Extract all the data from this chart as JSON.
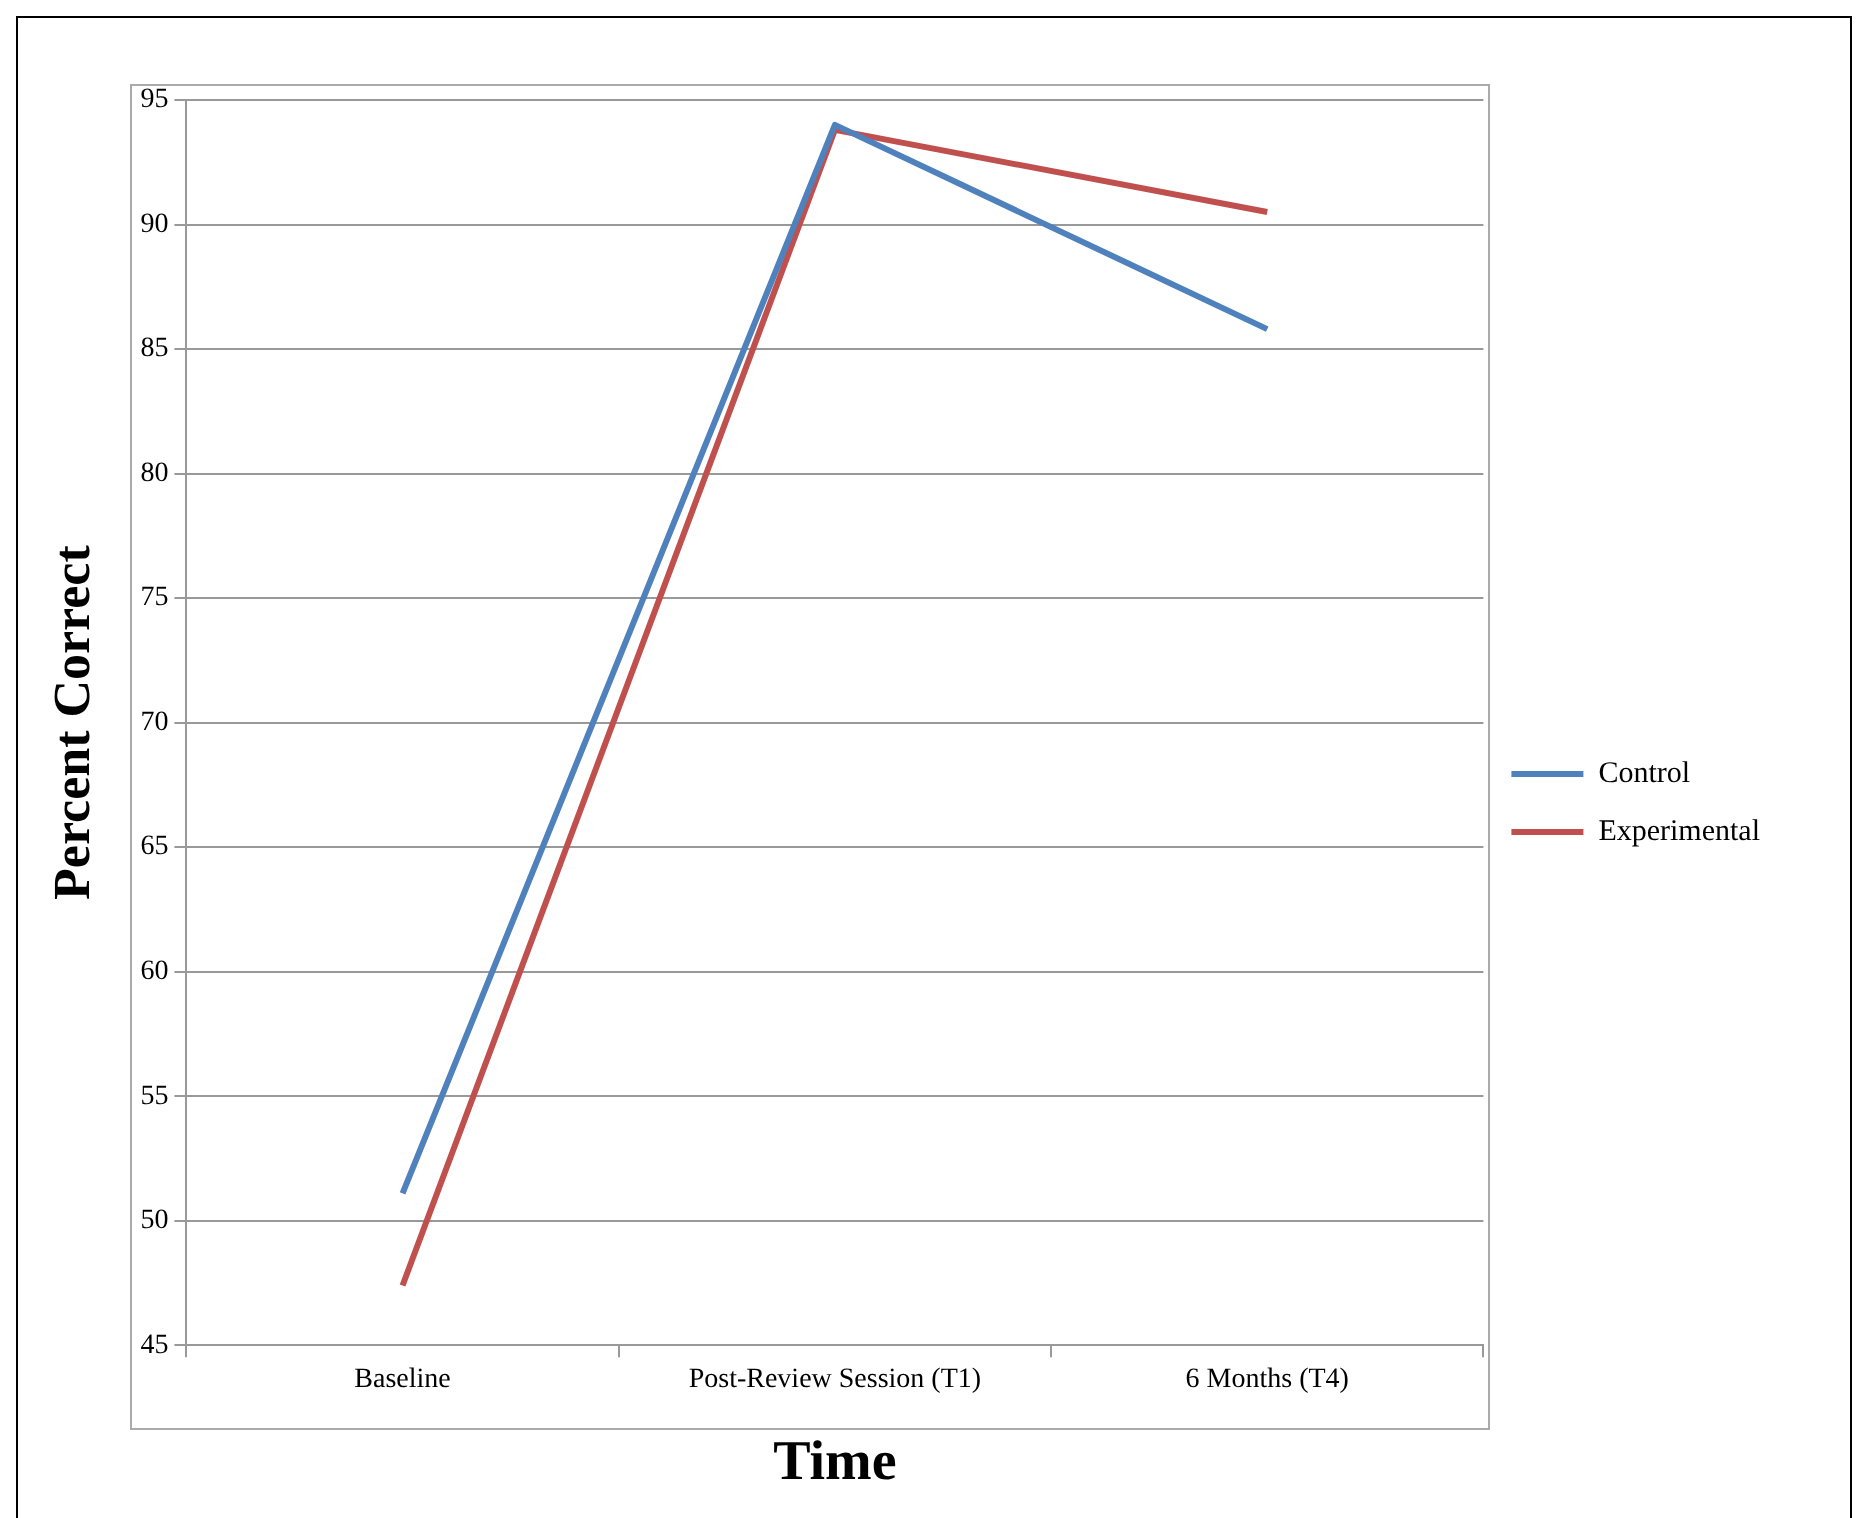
{
  "chart_data": {
    "type": "line",
    "xlabel": "Time",
    "ylabel": "Percent Correct",
    "categories": [
      "Baseline",
      "Post-Review Session (T1)",
      "6 Months (T4)"
    ],
    "series": [
      {
        "name": "Control",
        "color": "#4f81bd",
        "values": [
          51.1,
          94.0,
          85.8
        ]
      },
      {
        "name": "Experimental",
        "color": "#c0504d",
        "values": [
          47.4,
          93.8,
          90.5
        ]
      }
    ],
    "ylim": [
      45,
      95
    ],
    "yticks": [
      45,
      50,
      55,
      60,
      65,
      70,
      75,
      80,
      85,
      90,
      95
    ],
    "grid": "y",
    "legend": "right",
    "marker": "none",
    "line_style": "solid"
  }
}
